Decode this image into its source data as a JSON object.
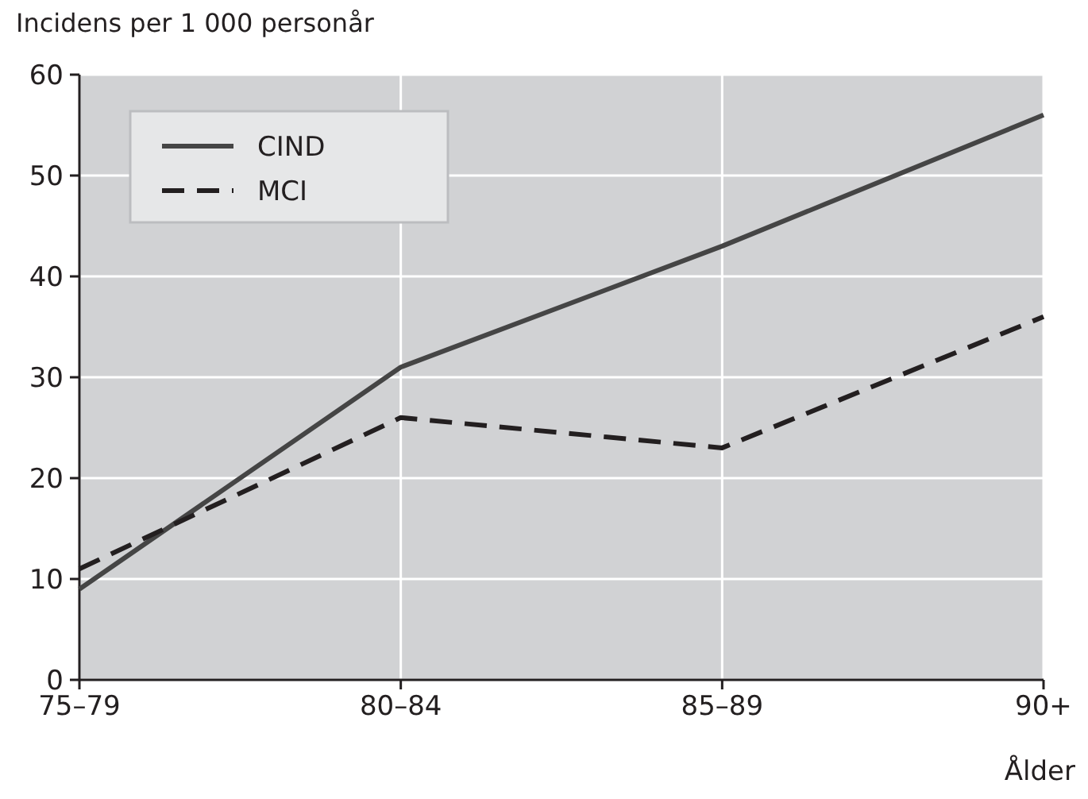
{
  "chart_data": {
    "type": "line",
    "ylabel": "Incidens per 1 000 personår",
    "xlabel": "Ålder",
    "categories": [
      "75–79",
      "80–84",
      "85–89",
      "90+"
    ],
    "series": [
      {
        "name": "CIND",
        "color": "#454545",
        "values": [
          9,
          31,
          43,
          56
        ],
        "line_style": "solid"
      },
      {
        "name": "MCI",
        "color": "#231f20",
        "values": [
          11,
          26,
          23,
          36
        ],
        "line_style": "dashed"
      }
    ],
    "ylim": [
      0,
      60
    ],
    "yticks": [
      0,
      10,
      20,
      30,
      40,
      50,
      60
    ],
    "grid": true,
    "legend": "top left",
    "marker": "none"
  }
}
